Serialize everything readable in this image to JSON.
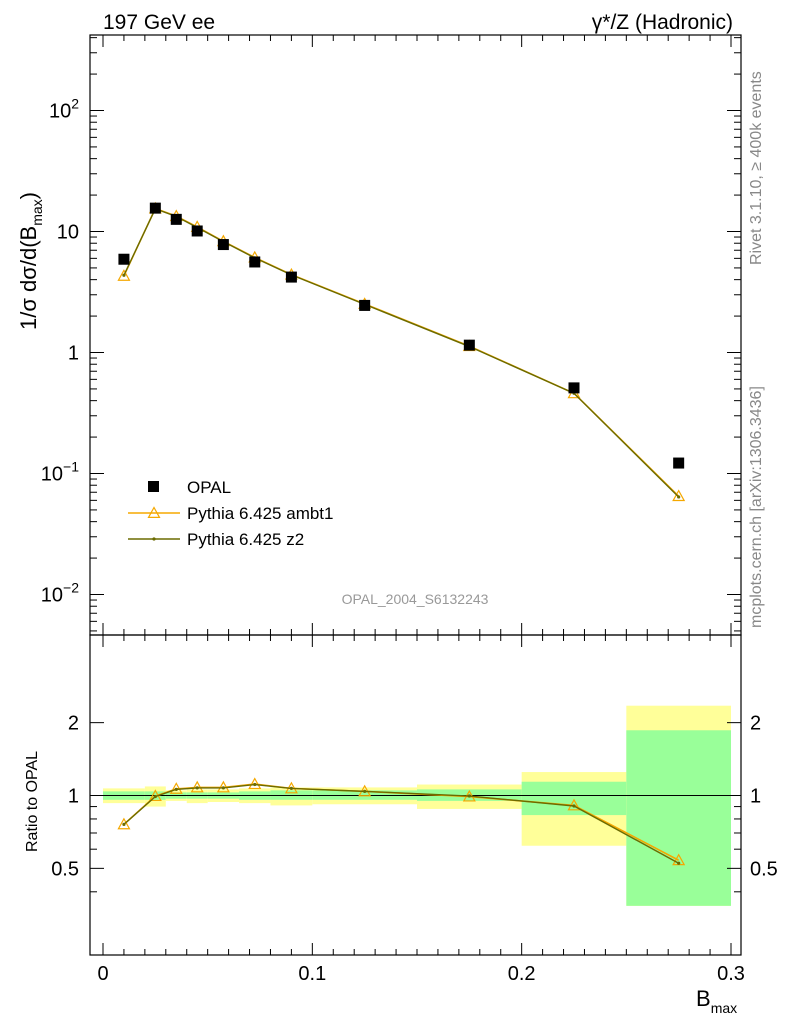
{
  "header": {
    "left_title": "197 GeV ee",
    "right_title_main": "γ*/Z (Hadronic)"
  },
  "side_labels": {
    "rivet": "Rivet 3.1.10, ≥ 400k events",
    "mcplots": "mcplots.cern.ch [arXiv:1306.3436]"
  },
  "chart_data": [
    {
      "type": "scatter",
      "panel": "main",
      "xlabel": "B_max",
      "ylabel": "1/σ dσ/d(B_max)",
      "ylog": true,
      "xlim": [
        0,
        0.3
      ],
      "ylim": [
        0.005,
        450
      ],
      "yticks": [
        "10^-2",
        "10^-1",
        "1",
        "10",
        "10^2"
      ],
      "watermark": "OPAL_2004_S6132243",
      "legend_position": "lower-left",
      "series": [
        {
          "name": "OPAL",
          "marker": "square",
          "color": "#000000",
          "x": [
            0.01,
            0.025,
            0.035,
            0.045,
            0.0575,
            0.0725,
            0.09,
            0.125,
            0.175,
            0.225,
            0.275
          ],
          "y": [
            5.9,
            15.6,
            12.6,
            10.1,
            7.8,
            5.6,
            4.2,
            2.45,
            1.15,
            0.51,
            0.122
          ]
        },
        {
          "name": "Pythia 6.425 ambt1",
          "marker": "triangle",
          "color": "#f5a800",
          "x": [
            0.01,
            0.025,
            0.035,
            0.045,
            0.0575,
            0.0725,
            0.09,
            0.125,
            0.175,
            0.225,
            0.275
          ],
          "y": [
            4.3,
            15.5,
            13.4,
            10.9,
            8.3,
            6.1,
            4.4,
            2.52,
            1.13,
            0.46,
            0.065
          ]
        },
        {
          "name": "Pythia 6.425 z2",
          "marker": "dot",
          "color": "#6b6b00",
          "x": [
            0.01,
            0.025,
            0.035,
            0.045,
            0.0575,
            0.0725,
            0.09,
            0.125,
            0.175,
            0.225,
            0.275
          ],
          "y": [
            4.35,
            15.4,
            13.3,
            10.8,
            8.25,
            6.05,
            4.38,
            2.5,
            1.12,
            0.46,
            0.064
          ]
        }
      ]
    },
    {
      "type": "line",
      "panel": "ratio",
      "xlabel": "B_max",
      "ylabel": "Ratio to OPAL",
      "xlim": [
        0,
        0.3
      ],
      "ylim": [
        0.35,
        2.35
      ],
      "xticks": [
        "0",
        "0.1",
        "0.2",
        "0.3"
      ],
      "yticks": [
        "0.5",
        "1",
        "2"
      ],
      "bands": {
        "bin_edges": [
          0,
          0.02,
          0.03,
          0.04,
          0.05,
          0.065,
          0.08,
          0.1,
          0.15,
          0.2,
          0.25,
          0.3
        ],
        "stat_low": [
          0.96,
          0.96,
          0.97,
          0.97,
          0.97,
          0.96,
          0.96,
          0.96,
          0.95,
          0.83,
          0.35
        ],
        "stat_high": [
          1.04,
          1.04,
          1.03,
          1.03,
          1.03,
          1.04,
          1.05,
          1.05,
          1.06,
          1.14,
          1.86
        ],
        "total_low": [
          0.93,
          0.9,
          0.95,
          0.93,
          0.94,
          0.93,
          0.91,
          0.92,
          0.88,
          0.62,
          0.35
        ],
        "total_high": [
          1.07,
          1.09,
          1.05,
          1.06,
          1.06,
          1.07,
          1.08,
          1.08,
          1.11,
          1.25,
          2.35
        ]
      },
      "series": [
        {
          "name": "Pythia 6.425 ambt1",
          "color": "#f5a800",
          "x": [
            0.01,
            0.025,
            0.035,
            0.045,
            0.0575,
            0.0725,
            0.09,
            0.125,
            0.175,
            0.225,
            0.275
          ],
          "y": [
            0.76,
            0.995,
            1.065,
            1.08,
            1.08,
            1.115,
            1.07,
            1.04,
            0.99,
            0.91,
            0.54
          ]
        },
        {
          "name": "Pythia 6.425 z2",
          "color": "#6b6b00",
          "x": [
            0.01,
            0.025,
            0.035,
            0.045,
            0.0575,
            0.0725,
            0.09,
            0.125,
            0.175,
            0.225,
            0.275
          ],
          "y": [
            0.76,
            0.99,
            1.06,
            1.075,
            1.075,
            1.11,
            1.07,
            1.04,
            0.995,
            0.905,
            0.525
          ]
        }
      ]
    }
  ]
}
